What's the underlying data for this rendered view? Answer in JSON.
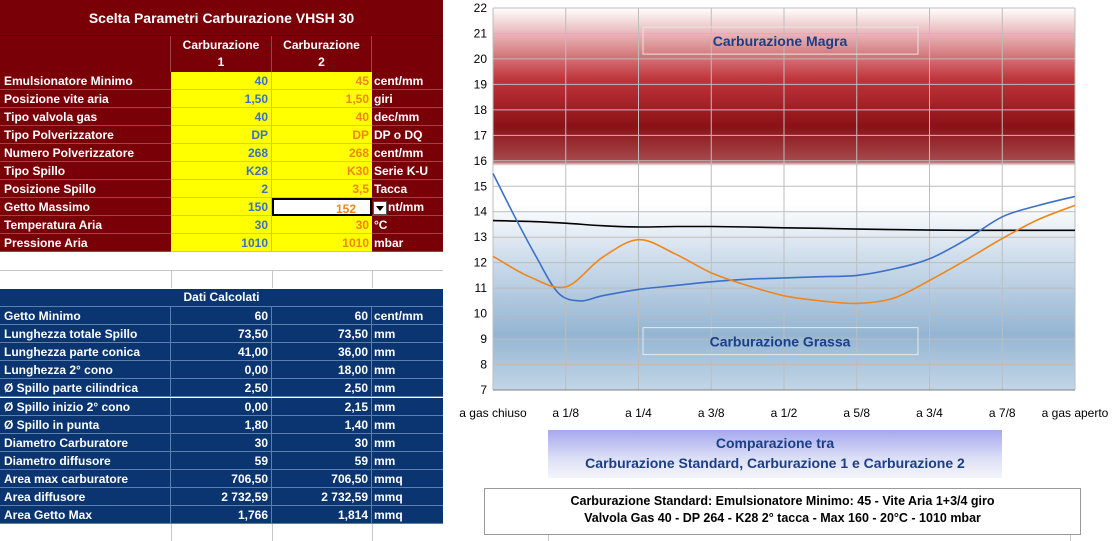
{
  "params": {
    "title": "Scelta Parametri  Carburazione VHSH 30",
    "col1_header": [
      "Carburazione",
      "1"
    ],
    "col2_header": [
      "Carburazione",
      "2"
    ],
    "rows": [
      {
        "label": "Emulsionatore Minimo",
        "c1": "40",
        "c2": "45",
        "unit": "cent/mm"
      },
      {
        "label": "Posizione vite aria",
        "c1": "1,50",
        "c2": "1,50",
        "unit": "giri"
      },
      {
        "label": "Tipo valvola gas",
        "c1": "40",
        "c2": "40",
        "unit": "dec/mm"
      },
      {
        "label": "Tipo Polverizzatore",
        "c1": "DP",
        "c2": "DP",
        "unit": "DP o DQ"
      },
      {
        "label": "Numero Polverizzatore",
        "c1": "268",
        "c2": "268",
        "unit": "cent/mm"
      },
      {
        "label": "Tipo Spillo",
        "c1": "K28",
        "c2": "K30",
        "unit": "Serie K-U"
      },
      {
        "label": "Posizione Spillo",
        "c1": "2",
        "c2": "3,5",
        "unit": "Tacca"
      },
      {
        "label": "Getto Massimo",
        "c1": "150",
        "c2": "152",
        "unit": "nt/mm"
      },
      {
        "label": "Temperatura Aria",
        "c1": "30",
        "c2": "30",
        "unit": "°C"
      },
      {
        "label": "Pressione Aria",
        "c1": "1010",
        "c2": "1010",
        "unit": "mbar"
      }
    ]
  },
  "calc": {
    "title": "Dati Calcolati",
    "rows": [
      {
        "label": "Getto Minimo",
        "c1": "60",
        "c2": "60",
        "unit": "cent/mm"
      },
      {
        "label": "Lunghezza totale  Spillo",
        "c1": "73,50",
        "c2": "73,50",
        "unit": "mm"
      },
      {
        "label": "Lunghezza parte conica",
        "c1": "41,00",
        "c2": "36,00",
        "unit": "mm"
      },
      {
        "label": "Lunghezza 2° cono",
        "c1": "0,00",
        "c2": "18,00",
        "unit": "mm"
      },
      {
        "label": "Ø Spillo parte cilindrica",
        "c1": "2,50",
        "c2": "2,50",
        "unit": "mm"
      },
      {
        "label": "Ø Spillo inizio 2° cono",
        "c1": "0,00",
        "c2": "2,15",
        "unit": "mm"
      },
      {
        "label": "Ø Spillo in punta",
        "c1": "1,80",
        "c2": "1,40",
        "unit": "mm"
      },
      {
        "label": "Diametro Carburatore",
        "c1": "30",
        "c2": "30",
        "unit": "mm"
      },
      {
        "label": "Diametro diffusore",
        "c1": "59",
        "c2": "59",
        "unit": "mm"
      },
      {
        "label": "Area max carburatore",
        "c1": "706,50",
        "c2": "706,50",
        "unit": "mmq"
      },
      {
        "label": "Area diffusore",
        "c1": "2 732,59",
        "c2": "2 732,59",
        "unit": "mmq"
      },
      {
        "label": "Area Getto Max",
        "c1": "1,766",
        "c2": "1,814",
        "unit": "mmq"
      }
    ]
  },
  "chart_data": {
    "type": "line",
    "categories": [
      "a gas chiuso",
      "a 1/8",
      "a 1/4",
      "a 3/8",
      "a 1/2",
      "a 5/8",
      "a 3/4",
      "a 7/8",
      "a gas aperto"
    ],
    "ylim": [
      7,
      22
    ],
    "yticks": [
      7,
      8,
      9,
      10,
      11,
      12,
      13,
      14,
      15,
      16,
      17,
      18,
      19,
      20,
      21,
      22
    ],
    "grid": true,
    "annotations": [
      "Carburazione Magra",
      "Carburazione Grassa"
    ],
    "series": [
      {
        "color": "#000000",
        "x": [
          0,
          0.5,
          1,
          1.5,
          2,
          2.5,
          3,
          3.5,
          4,
          4.5,
          5,
          5.5,
          6,
          6.5,
          7,
          7.5,
          8
        ],
        "values": [
          13.65,
          13.62,
          13.55,
          13.45,
          13.4,
          13.42,
          13.42,
          13.4,
          13.37,
          13.35,
          13.32,
          13.3,
          13.28,
          13.27,
          13.27,
          13.27,
          13.27
        ]
      },
      {
        "color": "#3c6fc6",
        "x": [
          0,
          0.3,
          0.6,
          0.9,
          1.2,
          1.5,
          2,
          2.5,
          3,
          3.5,
          4,
          4.5,
          5,
          5.5,
          6,
          6.5,
          7,
          7.5,
          8
        ],
        "values": [
          15.5,
          13.8,
          12.2,
          10.8,
          10.5,
          10.7,
          10.95,
          11.1,
          11.25,
          11.35,
          11.4,
          11.45,
          11.5,
          11.75,
          12.15,
          12.9,
          13.8,
          14.25,
          14.6
        ]
      },
      {
        "color": "#f0861a",
        "x": [
          0,
          0.5,
          1,
          1.5,
          2,
          2.5,
          3,
          3.5,
          4,
          4.5,
          5,
          5.5,
          6,
          6.5,
          7,
          7.5,
          8
        ],
        "values": [
          12.25,
          11.45,
          11.05,
          12.2,
          12.9,
          12.35,
          11.6,
          11.1,
          10.7,
          10.5,
          10.4,
          10.6,
          11.3,
          12.1,
          12.95,
          13.7,
          14.25
        ]
      }
    ]
  },
  "compare": {
    "line1": "Comparazione tra",
    "line2": "Carburazione Standard, Carburazione 1 e Carburazione 2"
  },
  "info": {
    "line1": "Carburazione Standard: Emulsionatore Minimo: 45 - Vite Aria 1+3/4 giro",
    "line2": "Valvola Gas 40 - DP 264 - K28 2° tacca - Max 160 - 20°C - 1010 mbar"
  }
}
